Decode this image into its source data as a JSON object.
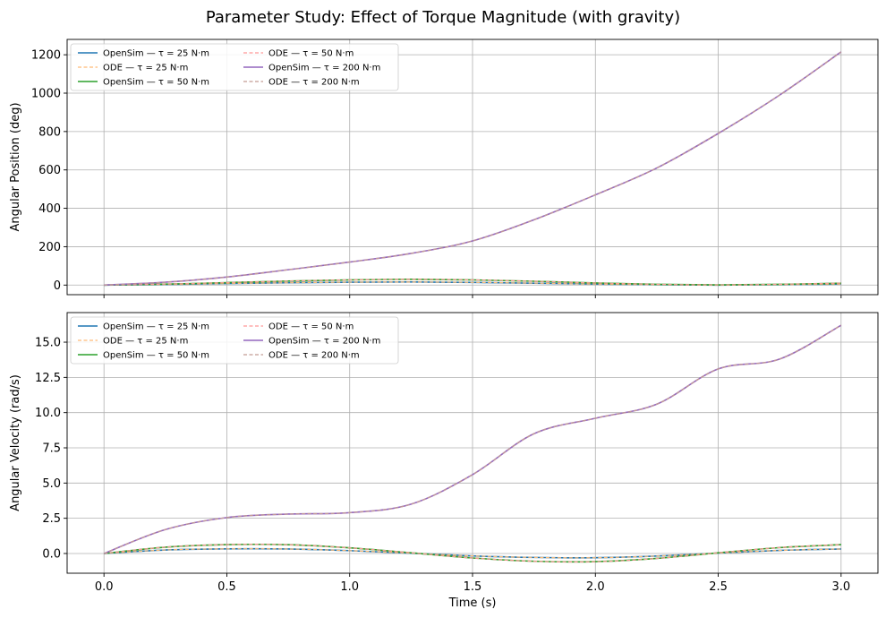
{
  "figure": {
    "title": "Parameter Study: Effect of Torque Magnitude (with gravity)"
  },
  "chart_data": [
    {
      "type": "line",
      "title": "",
      "xlabel": "",
      "ylabel": "Angular Position (deg)",
      "xlim": [
        -0.15,
        3.15
      ],
      "ylim": [
        -50,
        1280
      ],
      "xticks": [
        0.0,
        0.5,
        1.0,
        1.5,
        2.0,
        2.5,
        3.0
      ],
      "yticks": [
        0,
        200,
        400,
        600,
        800,
        1000,
        1200
      ],
      "ytick_labels": [
        "0",
        "200",
        "400",
        "600",
        "800",
        "1000",
        "1200"
      ],
      "grid": true,
      "legend": {
        "placement": "upper-left",
        "columns": 2
      },
      "x": [
        0.0,
        0.25,
        0.5,
        0.75,
        1.0,
        1.25,
        1.5,
        1.75,
        2.0,
        2.25,
        2.5,
        2.75,
        3.0
      ],
      "series": [
        {
          "name": "OpenSim — τ = 25 N·m",
          "color": "#1f77b4",
          "style": "solid",
          "values": [
            0,
            3,
            8,
            12,
            15,
            16,
            14,
            10,
            5,
            2,
            0,
            2,
            5
          ]
        },
        {
          "name": "ODE — τ = 25 N·m",
          "color": "#ffbb78",
          "style": "dashed",
          "values": [
            0,
            3,
            8,
            12,
            15,
            16,
            14,
            10,
            5,
            2,
            0,
            2,
            5
          ]
        },
        {
          "name": "OpenSim — τ = 50 N·m",
          "color": "#2ca02c",
          "style": "solid",
          "values": [
            0,
            5,
            13,
            21,
            27,
            30,
            27,
            20,
            11,
            4,
            1,
            4,
            10
          ]
        },
        {
          "name": "ODE — τ = 50 N·m",
          "color": "#ff9896",
          "style": "dashed",
          "values": [
            0,
            5,
            13,
            21,
            27,
            30,
            27,
            20,
            11,
            4,
            1,
            4,
            10
          ]
        },
        {
          "name": "OpenSim — τ = 200 N·m",
          "color": "#9467bd",
          "style": "solid",
          "values": [
            0,
            15,
            42,
            80,
            120,
            165,
            230,
            340,
            470,
            610,
            790,
            990,
            1215
          ]
        },
        {
          "name": "ODE — τ = 200 N·m",
          "color": "#c49c94",
          "style": "dashed",
          "values": [
            0,
            15,
            42,
            80,
            120,
            165,
            230,
            340,
            470,
            610,
            790,
            990,
            1215
          ]
        }
      ]
    },
    {
      "type": "line",
      "title": "",
      "xlabel": "Time (s)",
      "ylabel": "Angular Velocity (rad/s)",
      "xlim": [
        -0.15,
        3.15
      ],
      "ylim": [
        -1.4,
        17.1
      ],
      "xticks": [
        0.0,
        0.5,
        1.0,
        1.5,
        2.0,
        2.5,
        3.0
      ],
      "xtick_labels": [
        "0.0",
        "0.5",
        "1.0",
        "1.5",
        "2.0",
        "2.5",
        "3.0"
      ],
      "yticks": [
        0.0,
        2.5,
        5.0,
        7.5,
        10.0,
        12.5,
        15.0
      ],
      "ytick_labels": [
        "0.0",
        "2.5",
        "5.0",
        "7.5",
        "10.0",
        "12.5",
        "15.0"
      ],
      "grid": true,
      "legend": {
        "placement": "upper-left",
        "columns": 2
      },
      "x": [
        0.0,
        0.25,
        0.5,
        0.75,
        1.0,
        1.25,
        1.5,
        1.75,
        2.0,
        2.25,
        2.5,
        2.75,
        3.0
      ],
      "series": [
        {
          "name": "OpenSim — τ = 25 N·m",
          "color": "#1f77b4",
          "style": "solid",
          "values": [
            0,
            0.25,
            0.33,
            0.32,
            0.2,
            0.02,
            -0.17,
            -0.28,
            -0.3,
            -0.18,
            0.03,
            0.22,
            0.32
          ]
        },
        {
          "name": "ODE — τ = 25 N·m",
          "color": "#ffbb78",
          "style": "dashed",
          "values": [
            0,
            0.25,
            0.33,
            0.32,
            0.2,
            0.02,
            -0.17,
            -0.28,
            -0.3,
            -0.18,
            0.03,
            0.22,
            0.32
          ]
        },
        {
          "name": "OpenSim — τ = 50 N·m",
          "color": "#2ca02c",
          "style": "solid",
          "values": [
            0,
            0.45,
            0.63,
            0.62,
            0.4,
            0.05,
            -0.32,
            -0.55,
            -0.58,
            -0.35,
            0.05,
            0.42,
            0.63
          ]
        },
        {
          "name": "ODE — τ = 50 N·m",
          "color": "#ff9896",
          "style": "dashed",
          "values": [
            0,
            0.45,
            0.63,
            0.62,
            0.4,
            0.05,
            -0.32,
            -0.55,
            -0.58,
            -0.35,
            0.05,
            0.42,
            0.63
          ]
        },
        {
          "name": "OpenSim — τ = 200 N·m",
          "color": "#9467bd",
          "style": "solid",
          "values": [
            0,
            1.7,
            2.55,
            2.8,
            2.9,
            3.5,
            5.6,
            8.5,
            9.6,
            10.6,
            13.1,
            13.8,
            16.2
          ]
        },
        {
          "name": "ODE — τ = 200 N·m",
          "color": "#c49c94",
          "style": "dashed",
          "values": [
            0,
            1.7,
            2.55,
            2.8,
            2.9,
            3.5,
            5.6,
            8.5,
            9.6,
            10.6,
            13.1,
            13.8,
            16.2
          ]
        }
      ]
    }
  ]
}
